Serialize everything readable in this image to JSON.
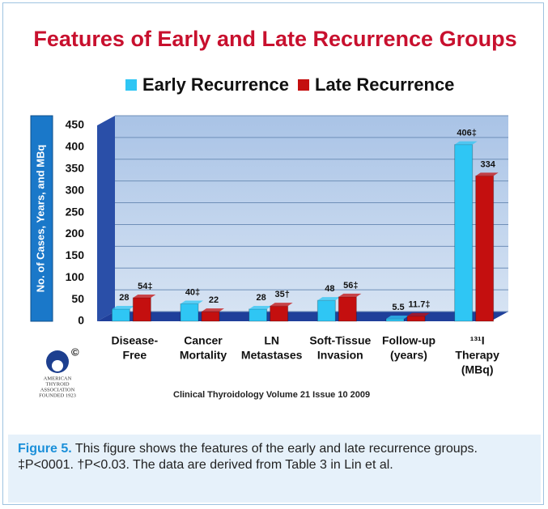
{
  "chart_data": {
    "type": "bar",
    "title": "Features of Early and Late Recurrence Groups",
    "y_label": "No. of Cases, Years, and MBq",
    "categories": [
      [
        "Disease-",
        "Free"
      ],
      [
        "Cancer",
        "Mortality"
      ],
      [
        "LN",
        "Metastases"
      ],
      [
        "Soft-Tissue",
        "Invasion"
      ],
      [
        "Follow-up",
        "(years)"
      ],
      [
        "¹³¹I",
        "Therapy",
        "(MBq)"
      ]
    ],
    "series": [
      {
        "name": "Early Recurrence",
        "color": "#2fc6f4",
        "values": [
          28,
          40,
          28,
          48,
          5.5,
          406
        ],
        "value_labels": [
          "28",
          "40‡",
          "28",
          "48",
          "5.5",
          "406‡"
        ]
      },
      {
        "name": "Late Recurrence",
        "color": "#c40f0f",
        "values": [
          54,
          22,
          35,
          56,
          11.7,
          334
        ],
        "value_labels": [
          "54‡",
          "22",
          "35†",
          "56‡",
          "11.7‡",
          "334"
        ]
      }
    ],
    "ylim": [
      0,
      450
    ],
    "yticks": [
      0,
      50,
      100,
      150,
      200,
      250,
      300,
      350,
      400,
      450
    ],
    "grid": true,
    "source": "Clinical Thyroidology Volume 21 Issue 10 2009"
  },
  "logo": {
    "symbol": "©",
    "lines": [
      "AMERICAN",
      "THYROID",
      "ASSOCIATION",
      "FOUNDED 1923"
    ]
  },
  "caption": {
    "label": "Figure 5.",
    "text": " This figure shows the features of the early and late recurrence groups. ‡P<0001. †P<0.03. The data are derived from Table 3 in Lin et al."
  }
}
